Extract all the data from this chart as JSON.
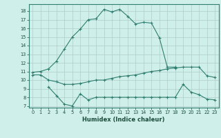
{
  "title": "",
  "xlabel": "Humidex (Indice chaleur)",
  "ylabel": "",
  "background_color": "#cff0ea",
  "grid_color": "#b0ccc8",
  "line_color": "#2e7d6e",
  "xlim": [
    -0.5,
    23.5
  ],
  "ylim": [
    6.8,
    18.8
  ],
  "yticks": [
    7,
    8,
    9,
    10,
    11,
    12,
    13,
    14,
    15,
    16,
    17,
    18
  ],
  "xticks": [
    0,
    1,
    2,
    3,
    4,
    5,
    6,
    7,
    8,
    9,
    10,
    11,
    12,
    13,
    14,
    15,
    16,
    17,
    18,
    19,
    20,
    21,
    22,
    23
  ],
  "line1_x": [
    0,
    1,
    2,
    3,
    4,
    5,
    6,
    7,
    8,
    9,
    10,
    11,
    12,
    13,
    14,
    15,
    16,
    17,
    18
  ],
  "line1_y": [
    10.9,
    11.0,
    11.3,
    12.2,
    13.6,
    15.0,
    15.9,
    17.0,
    17.1,
    18.2,
    17.9,
    18.2,
    17.4,
    16.5,
    16.7,
    16.6,
    14.9,
    11.5,
    11.5
  ],
  "line2_x": [
    0,
    1,
    2,
    3,
    4,
    5,
    6,
    7,
    8,
    9,
    10,
    11,
    12,
    13,
    14,
    15,
    16,
    17,
    18,
    19,
    20,
    21,
    22,
    23
  ],
  "line2_y": [
    10.6,
    10.6,
    10.0,
    9.8,
    9.5,
    9.5,
    9.6,
    9.8,
    10.0,
    10.0,
    10.2,
    10.4,
    10.5,
    10.6,
    10.8,
    11.0,
    11.1,
    11.3,
    11.4,
    11.5,
    11.5,
    11.5,
    10.5,
    10.3
  ],
  "line3_x": [
    2,
    3,
    4,
    5,
    6,
    7,
    8,
    9,
    10,
    11,
    12,
    13,
    14,
    15,
    16,
    17,
    18,
    19,
    20,
    21,
    22,
    23
  ],
  "line3_y": [
    9.2,
    8.2,
    7.2,
    7.0,
    8.4,
    7.7,
    8.0,
    8.0,
    8.0,
    8.0,
    8.0,
    8.0,
    8.0,
    8.0,
    8.0,
    8.0,
    8.0,
    9.5,
    8.6,
    8.3,
    7.8,
    7.7
  ]
}
